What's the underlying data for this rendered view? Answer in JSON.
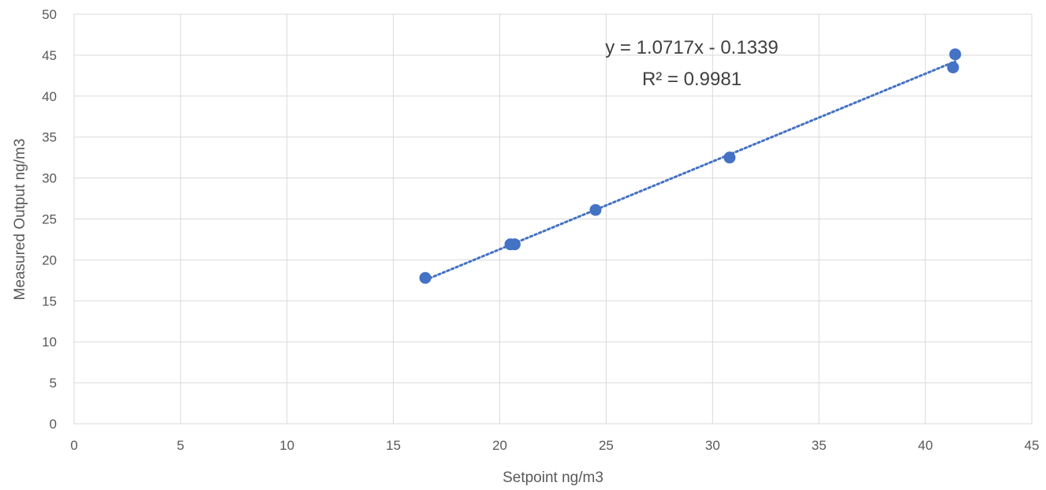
{
  "chart_data": {
    "type": "scatter",
    "xlabel": "Setpoint ng/m3",
    "ylabel": "Measured Output ng/m3",
    "xlim": [
      0,
      45
    ],
    "ylim": [
      0,
      50
    ],
    "x_ticks": [
      "0",
      "5",
      "10",
      "15",
      "20",
      "25",
      "30",
      "35",
      "40",
      "45"
    ],
    "y_ticks": [
      "0",
      "5",
      "10",
      "15",
      "20",
      "25",
      "30",
      "35",
      "40",
      "45",
      "50"
    ],
    "grid": true,
    "legend": "none",
    "series": [
      {
        "color": "#4472C4",
        "points": [
          {
            "x": 16.5,
            "y": 17.8
          },
          {
            "x": 20.5,
            "y": 21.9
          },
          {
            "x": 20.7,
            "y": 21.9
          },
          {
            "x": 24.5,
            "y": 26.1
          },
          {
            "x": 30.8,
            "y": 32.5
          },
          {
            "x": 41.3,
            "y": 43.5
          },
          {
            "x": 41.4,
            "y": 45.1
          }
        ]
      }
    ],
    "trendline": {
      "type": "linear",
      "slope": 1.0717,
      "intercept": -0.1339,
      "color": "#4472C4",
      "style": "dotted",
      "equation_label": "y = 1.0717x - 0.1339",
      "r2_label": "R² = 0.9981"
    }
  }
}
